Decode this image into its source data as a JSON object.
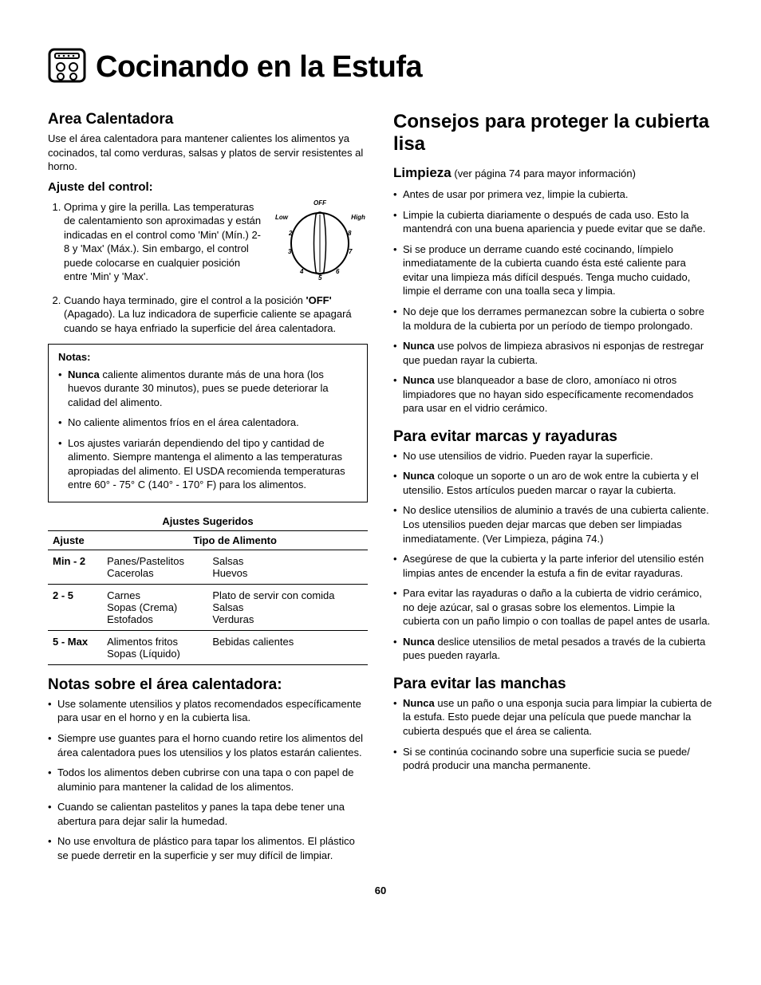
{
  "header": {
    "title": "Cocinando en la Estufa"
  },
  "left": {
    "area_title": "Area Calentadora",
    "area_intro": "Use el área calentadora para mantener calientes los alimentos ya cocinados, tal como verduras, salsas y platos de servir resistentes al horno.",
    "adjust_title": "Ajuste del control:",
    "step1": "Oprima y gire la perilla. Las temperaturas de calentamiento son aproximadas y están indicadas en el control como 'Min' (Mín.) 2-8 y 'Max' (Máx.). Sin embargo, el control puede colocarse en cualquier posición entre 'Min' y 'Max'.",
    "step2_a": "Cuando haya terminado, gire el control a la posición ",
    "step2_b": "'OFF'",
    "step2_c": " (Apagado). La luz indicadora de superficie caliente se apagará cuando se haya enfriado la superficie del área calentadora.",
    "notes_header": "Notas:",
    "note1_a": "Nunca",
    "note1_b": " caliente alimentos durante más de una hora (los huevos durante 30 minutos), pues se puede deteriorar la calidad del alimento.",
    "note2": "No caliente alimentos fríos en el área calentadora.",
    "note3": "Los ajustes variarán dependiendo del tipo y cantidad de alimento. Siempre mantenga el alimento a las temperaturas apropiadas del alimento. El USDA recomienda temperaturas entre 60° - 75° C (140° - 170° F) para los alimentos.",
    "table_caption": "Ajustes Sugeridos",
    "table": {
      "col1": "Ajuste",
      "col2": "Tipo de Alimento",
      "rows": [
        {
          "setting": "Min - 2",
          "left": "Panes/Pastelitos\nCacerolas",
          "right": "Salsas\nHuevos"
        },
        {
          "setting": "2 - 5",
          "left": "Carnes\nSopas (Crema)\nEstofados",
          "right": "Plato de servir con comida\nSalsas\nVerduras"
        },
        {
          "setting": "5 - Max",
          "left": "Alimentos fritos\nSopas (Líquido)",
          "right": "Bebidas calientes"
        }
      ]
    },
    "warmnotes_title": "Notas sobre el área calentadora:",
    "warmnotes": [
      "Use solamente utensilios y platos recomendados específicamente para usar en el horno y en la cubierta lisa.",
      "Siempre use guantes para el horno cuando retire los alimentos del área calentadora pues los utensilios y los platos estarán calientes.",
      "Todos los alimentos deben cubrirse con una tapa o con papel de aluminio para mantener la calidad de los alimentos.",
      "Cuando se calientan pastelitos y panes la tapa debe tener una abertura para dejar salir la humedad.",
      "No use envoltura de plástico para tapar los alimentos. El plástico se puede derretir en la superficie y ser muy difícil de limpiar."
    ]
  },
  "dial": {
    "off": "OFF",
    "low": "Low",
    "high": "High",
    "n2": "2",
    "n3": "3",
    "n4": "4",
    "n5": "5",
    "n6": "6",
    "n7": "7",
    "n8": "8"
  },
  "right": {
    "title": "Consejos para proteger la cubierta lisa",
    "limp_head": "Limpieza",
    "limp_note": " (ver página 74 para mayor información)",
    "limp_items": [
      {
        "pre": "",
        "b": "",
        "t": "Antes de usar por primera vez, limpie la cubierta."
      },
      {
        "pre": "",
        "b": "",
        "t": "Limpie la cubierta diariamente o después de cada uso. Esto la mantendrá con una buena apariencia y puede evitar que se dañe."
      },
      {
        "pre": "",
        "b": "",
        "t": "Si se produce un derrame cuando esté cocinando, límpielo inmediatamente de la cubierta cuando ésta esté caliente para evitar una limpieza más difícil después.  Tenga mucho cuidado, limpie el derrame con una toalla seca y limpia."
      },
      {
        "pre": "",
        "b": "",
        "t": "No deje que los derrames permanezcan sobre la cubierta o sobre la moldura de la cubierta por un período de tiempo prolongado."
      },
      {
        "pre": "",
        "b": "Nunca",
        "t": " use polvos de limpieza abrasivos ni esponjas de restregar que puedan rayar la cubierta."
      },
      {
        "pre": "",
        "b": "Nunca",
        "t": " use blanqueador a base de cloro, amoníaco ni otros limpiadores que no hayan sido específicamente recomendados para usar en el vidrio cerámico."
      }
    ],
    "marks_title": "Para evitar marcas y rayaduras",
    "marks_items": [
      {
        "b": "",
        "t": "No use utensilios de vidrio.  Pueden rayar la superficie."
      },
      {
        "b": "Nunca",
        "t": " coloque un soporte o un aro de wok entre la cubierta y el utensilio.  Estos artículos pueden marcar o rayar la cubierta."
      },
      {
        "b": "",
        "t": "No deslice utensilios de aluminio a través de una cubierta caliente. Los utensilios pueden dejar marcas que deben ser limpiadas inmediatamente. (Ver Limpieza, página 74.)"
      },
      {
        "b": "",
        "t": "Asegúrese de que la cubierta y la parte inferior del utensilio estén limpias antes de encender la estufa a fin de evitar rayaduras."
      },
      {
        "b": "",
        "t": "Para evitar las rayaduras o daño a la cubierta de vidrio cerámico, no deje azúcar, sal o grasas sobre los elementos.  Limpie la cubierta con un paño limpio o con toallas de papel antes de usarla."
      },
      {
        "b": "Nunca",
        "t": " deslice utensilios de metal pesados a través de la cubierta pues pueden rayarla."
      }
    ],
    "stains_title": "Para evitar las manchas",
    "stains_items": [
      {
        "b": "Nunca",
        "t": " use un paño o una esponja sucia para limpiar la cubierta de la estufa.  Esto puede dejar una película que puede manchar la cubierta después que el área se calienta."
      },
      {
        "b": "",
        "t": "Si se continúa cocinando sobre una superficie sucia se puede/ podrá producir una mancha permanente."
      }
    ]
  },
  "page_number": "60"
}
